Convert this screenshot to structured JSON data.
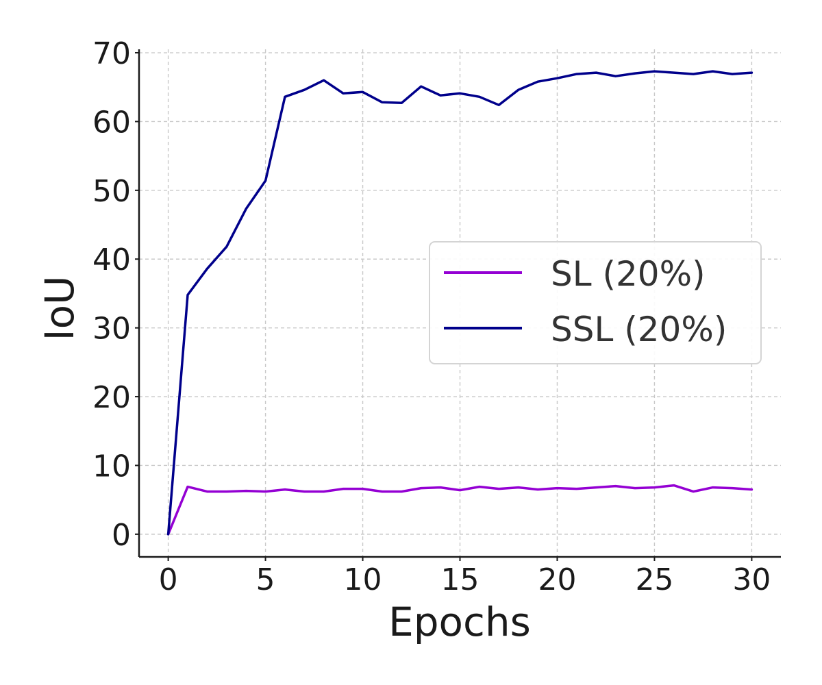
{
  "chart_data": {
    "type": "line",
    "title": "",
    "xlabel": "Epochs",
    "ylabel": "IoU",
    "xlim": [
      -1.5,
      31.5
    ],
    "ylim": [
      -3.3,
      70.5
    ],
    "xticks": [
      0,
      5,
      10,
      15,
      20,
      25,
      30
    ],
    "yticks": [
      0,
      10,
      20,
      30,
      40,
      50,
      60,
      70
    ],
    "grid": true,
    "legend": "center-right",
    "x": [
      0,
      1,
      2,
      3,
      4,
      5,
      6,
      7,
      8,
      9,
      10,
      11,
      12,
      13,
      14,
      15,
      16,
      17,
      18,
      19,
      20,
      21,
      22,
      23,
      24,
      25,
      26,
      27,
      28,
      29,
      30
    ],
    "series": [
      {
        "name": "SL (20%)",
        "color": "#9400d3",
        "values": [
          0,
          6.9,
          6.2,
          6.2,
          6.3,
          6.2,
          6.5,
          6.2,
          6.2,
          6.6,
          6.6,
          6.2,
          6.2,
          6.7,
          6.8,
          6.4,
          6.9,
          6.6,
          6.8,
          6.5,
          6.7,
          6.6,
          6.8,
          7.0,
          6.7,
          6.8,
          7.1,
          6.2,
          6.8,
          6.7,
          6.5
        ]
      },
      {
        "name": "SSL (20%)",
        "color": "#00008b",
        "values": [
          0,
          34.8,
          38.6,
          41.8,
          47.3,
          51.4,
          63.6,
          64.6,
          66.0,
          64.1,
          64.3,
          62.8,
          62.7,
          65.1,
          63.8,
          64.1,
          63.6,
          62.4,
          64.6,
          65.8,
          66.3,
          66.9,
          67.1,
          66.6,
          67.0,
          67.3,
          67.1,
          66.9,
          67.3,
          66.9,
          67.1
        ]
      }
    ]
  }
}
